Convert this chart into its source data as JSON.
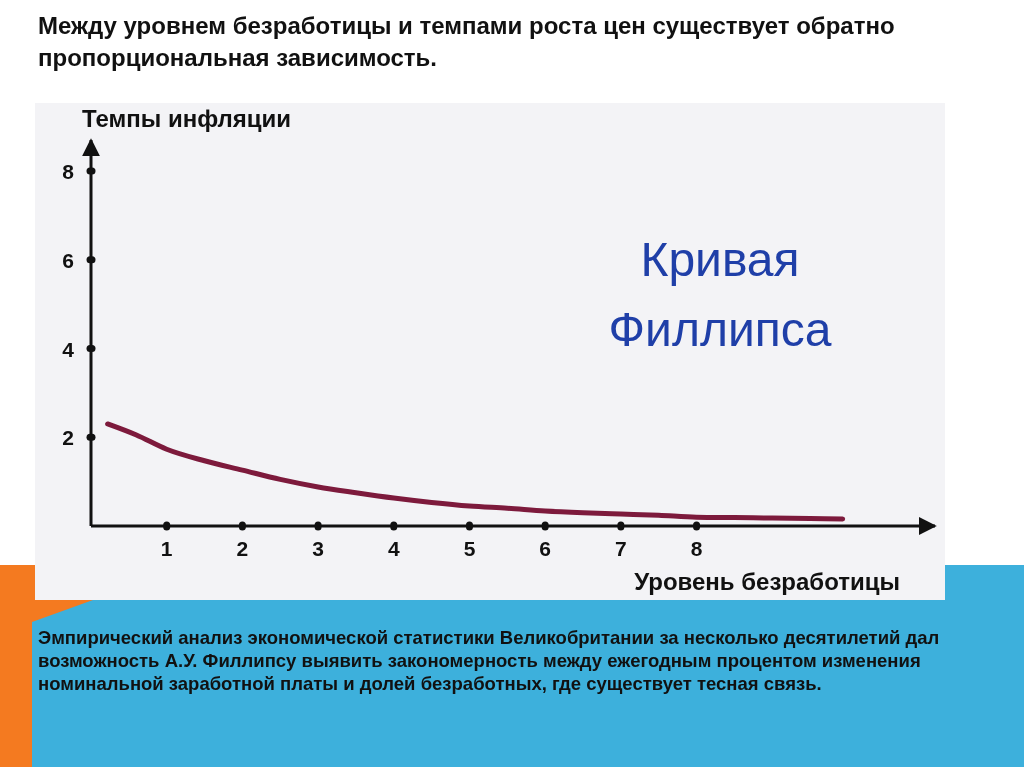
{
  "chart_data": {
    "type": "line",
    "title": "Между уровнем безработицы и темпами роста цен существует обратно пропорциональная зависимость.",
    "ylabel": "Темпы инфляции",
    "xlabel": "Уровень безработицы",
    "annotations": [
      "Кривая Филлипса",
      "Эмпирический анализ экономической статистики Великобритании за несколько десятилетий дал возможность А.У. Филлипсу выявить закономерность между ежегодным процентом изменения номинальной заработной платы и долей безработных, где существует тесная связь."
    ],
    "series": [
      {
        "color": "#7d1a3c",
        "x": [
          0.22,
          0.6,
          1,
          1.5,
          2,
          2.5,
          3,
          3.5,
          4,
          4.5,
          5,
          5.5,
          6,
          6.5,
          7,
          7.5,
          8,
          8.5,
          9,
          9.5,
          9.93
        ],
        "values": [
          2.3,
          2.05,
          1.73,
          1.47,
          1.26,
          1.05,
          0.88,
          0.75,
          0.63,
          0.53,
          0.45,
          0.4,
          0.34,
          0.3,
          0.27,
          0.24,
          0.2,
          0.19,
          0.18,
          0.17,
          0.16
        ]
      }
    ],
    "xlim": [
      0,
      11.15
    ],
    "ylim": [
      0,
      8.7
    ],
    "xticks": [
      1,
      2,
      3,
      4,
      5,
      6,
      7,
      8
    ],
    "yticks": [
      2,
      4,
      6,
      8
    ],
    "grid": false,
    "marker": "none",
    "line_style": "solid"
  }
}
